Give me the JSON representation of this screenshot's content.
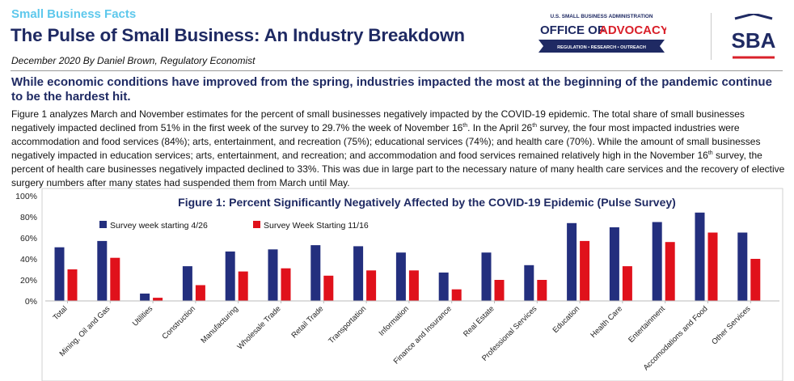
{
  "header": {
    "kicker": "Small Business Facts",
    "title": "The Pulse of Small Business: An Industry Breakdown",
    "byline": "December 2020  By Daniel Brown, Regulatory Economist"
  },
  "logos": {
    "advocacy_top": "U.S. SMALL BUSINESS ADMINISTRATION",
    "advocacy_office": "OFFICE OF",
    "advocacy_name": "ADVOCACY",
    "advocacy_tagline": "REGULATION  •  RESEARCH  •  OUTREACH",
    "sba": "SBA"
  },
  "lead": "While economic conditions have improved from the spring, industries impacted the most at the beginning of the pandemic continue to be the hardest hit.",
  "body": {
    "p1": "Figure 1 analyzes March and November estimates for the percent of small businesses negatively impacted by the COVID-19 epidemic. The total share of small businesses negatively impacted declined from 51% in the first week of the survey to 29.7% the week of November 16",
    "sup1": "th",
    "p2": ". In the April 26",
    "sup2": "th",
    "p3": " survey, the four most impacted industries were accommodation and food services (84%); arts, entertainment, and recreation (75%); educational services (74%); and health care (70%). While the amount of small businesses negatively impacted in education services; arts, entertainment, and recreation; and accommodation and food services remained relatively high in the November 16",
    "sup3": "th",
    "p4": " survey, the percent of health care businesses negatively impacted declined to 33%. This was due in large part to the necessary nature of many health care services and the recovery of elective surgery numbers after many states had suspended them from March until May."
  },
  "colors": {
    "navy": "#1f2a63",
    "series1": "#232f7e",
    "series2": "#e0111b",
    "kicker": "#5ec8ec"
  },
  "chart_data": {
    "type": "bar",
    "title": "Figure 1: Percent Significantly Negatively Affected by the COVID-19 Epidemic (Pulse Survey)",
    "categories": [
      "Total",
      "Mining, Oil and Gas",
      "Utilities",
      "Construction",
      "Manufacturing",
      "Wholesale Trade",
      "Retail Trade",
      "Transportation",
      "Information",
      "Finance and Insurance",
      "Real Estate",
      "Professional Services",
      "Education",
      "Health Care",
      "Entertainment",
      "Accomodations and Food",
      "Other Services"
    ],
    "series": [
      {
        "name": "Survey week starting 4/26",
        "color": "#232f7e",
        "values": [
          51,
          57,
          7,
          33,
          47,
          49,
          53,
          52,
          46,
          27,
          46,
          34,
          74,
          70,
          75,
          84,
          65
        ]
      },
      {
        "name": "Survey Week Starting 11/16",
        "color": "#e0111b",
        "values": [
          30,
          41,
          3,
          15,
          28,
          31,
          24,
          29,
          29,
          11,
          20,
          20,
          57,
          33,
          56,
          65,
          40
        ]
      }
    ],
    "ylim": [
      0,
      100
    ],
    "yticks": [
      "0%",
      "20%",
      "40%",
      "60%",
      "80%",
      "100%"
    ],
    "grid": false,
    "legend": "top-left"
  }
}
